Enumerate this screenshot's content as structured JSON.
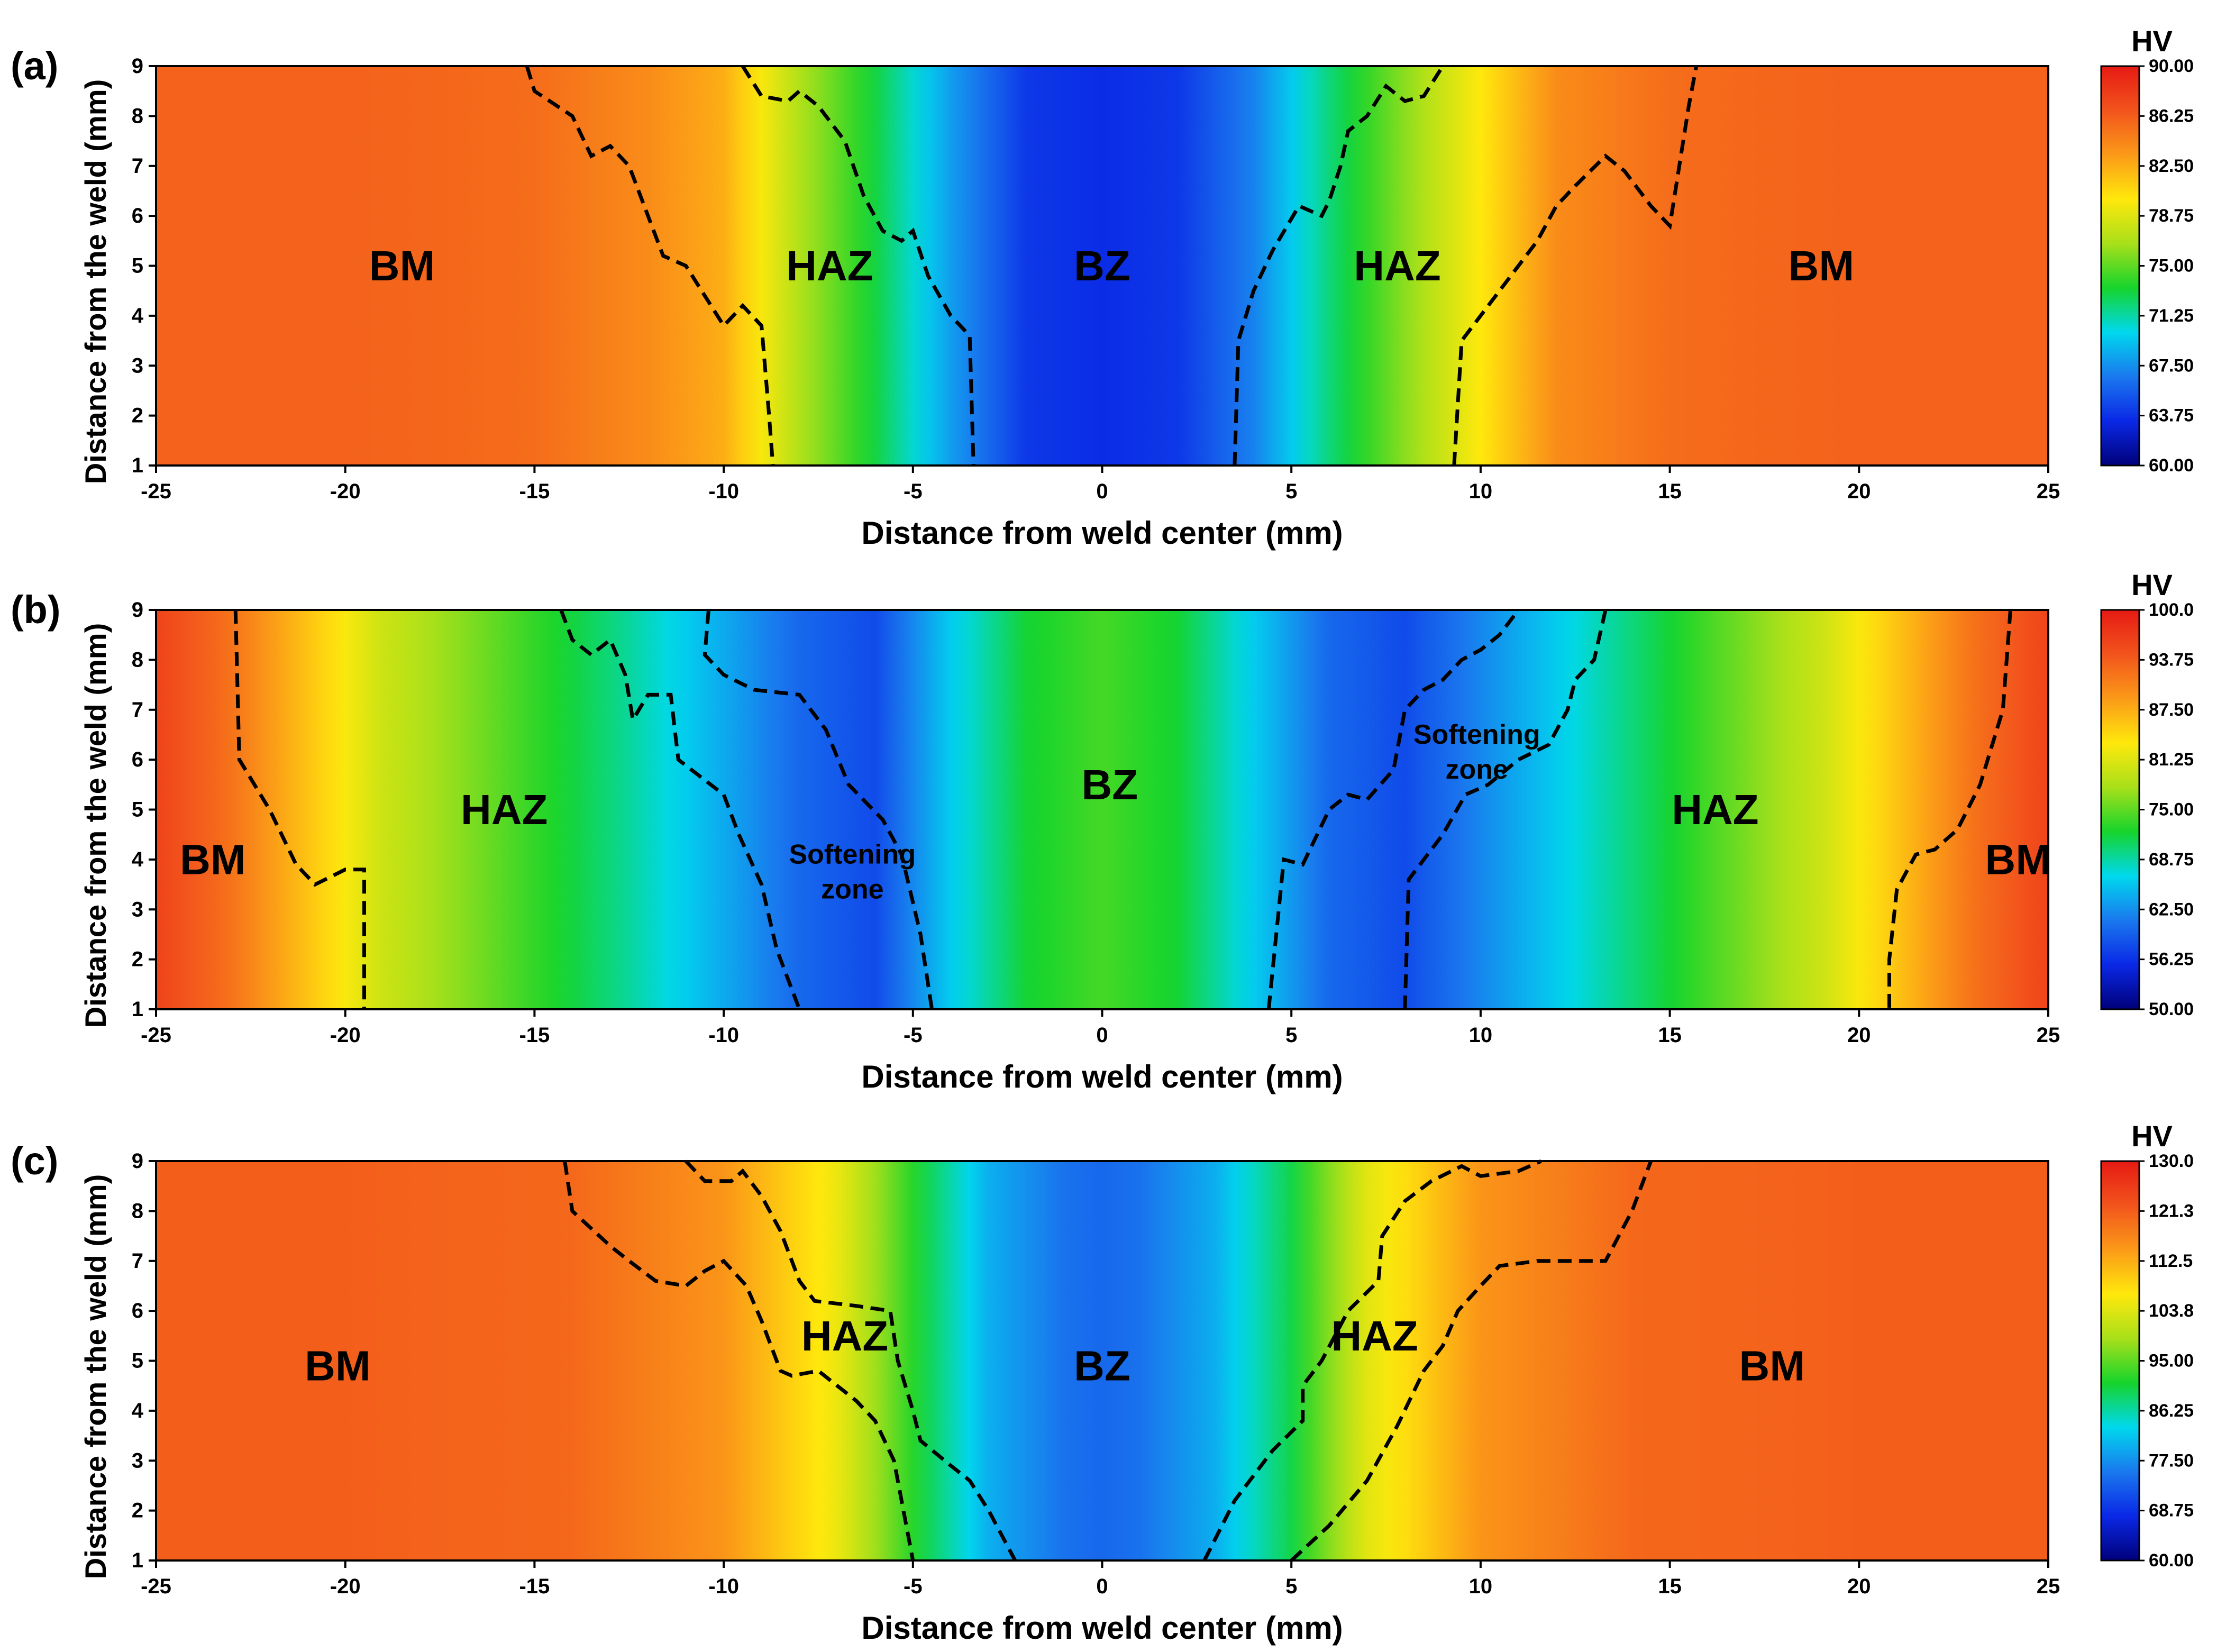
{
  "chart_data": [
    {
      "type": "heatmap",
      "panel_label": "(a)",
      "xlabel": "Distance from weld center (mm)",
      "ylabel": "Distance from the weld (mm)",
      "xlim": [
        -25,
        25
      ],
      "ylim": [
        1,
        9
      ],
      "x_ticks": [
        "-25",
        "-20",
        "-15",
        "-10",
        "-5",
        "0",
        "5",
        "10",
        "15",
        "20",
        "25"
      ],
      "y_ticks": [
        "1",
        "2",
        "3",
        "4",
        "5",
        "6",
        "7",
        "8",
        "9"
      ],
      "colorbar": {
        "title": "HV",
        "min": 60,
        "max": 90,
        "tick_labels": [
          "90.00",
          "86.25",
          "82.50",
          "78.75",
          "75.00",
          "71.25",
          "67.50",
          "63.75",
          "60.00"
        ]
      },
      "hardness_profile": {
        "x": [
          -25,
          -20,
          -15,
          -12,
          -10,
          -8,
          -6,
          -4,
          -2,
          0,
          2,
          4,
          6,
          8,
          10,
          12,
          15,
          20,
          25
        ],
        "hv": [
          86,
          86,
          85.5,
          84,
          82.5,
          77,
          73,
          68,
          64,
          63.5,
          64,
          67,
          72,
          76,
          80,
          84,
          85.5,
          86,
          86
        ]
      },
      "zone_labels": [
        {
          "text": "BM",
          "x": -18.5,
          "y": 5
        },
        {
          "text": "HAZ",
          "x": -7.2,
          "y": 5
        },
        {
          "text": "BZ",
          "x": 0,
          "y": 5
        },
        {
          "text": "HAZ",
          "x": 7.8,
          "y": 5
        },
        {
          "text": "BM",
          "x": 19,
          "y": 5
        }
      ],
      "boundaries": [
        [
          [
            -15.2,
            9
          ],
          [
            -15,
            8.5
          ],
          [
            -14,
            8
          ],
          [
            -13.5,
            7.2
          ],
          [
            -13,
            7.4
          ],
          [
            -12.5,
            7
          ],
          [
            -12,
            6
          ],
          [
            -11.6,
            5.2
          ],
          [
            -11,
            5
          ],
          [
            -10.5,
            4.4
          ],
          [
            -10,
            3.8
          ],
          [
            -9.5,
            4.2
          ],
          [
            -9,
            3.8
          ],
          [
            -8.8,
            2
          ],
          [
            -8.7,
            1
          ]
        ],
        [
          [
            -9.5,
            9
          ],
          [
            -9,
            8.4
          ],
          [
            -8.3,
            8.3
          ],
          [
            -8,
            8.5
          ],
          [
            -7.5,
            8.2
          ],
          [
            -6.8,
            7.5
          ],
          [
            -6.3,
            6.4
          ],
          [
            -5.8,
            5.7
          ],
          [
            -5.3,
            5.5
          ],
          [
            -5,
            5.7
          ],
          [
            -4.6,
            4.8
          ],
          [
            -4,
            4
          ],
          [
            -3.5,
            3.6
          ],
          [
            -3.4,
            1
          ]
        ],
        [
          [
            3.5,
            1
          ],
          [
            3.6,
            3.5
          ],
          [
            4,
            4.5
          ],
          [
            4.5,
            5.3
          ],
          [
            5.2,
            6.2
          ],
          [
            5.8,
            6
          ],
          [
            6,
            6.3
          ],
          [
            6.3,
            7
          ],
          [
            6.5,
            7.7
          ],
          [
            7,
            8
          ],
          [
            7.5,
            8.6
          ],
          [
            8,
            8.3
          ],
          [
            8.5,
            8.4
          ],
          [
            9,
            9
          ]
        ],
        [
          [
            9.3,
            1
          ],
          [
            9.5,
            3.5
          ],
          [
            10.5,
            4.5
          ],
          [
            11.5,
            5.5
          ],
          [
            12,
            6.2
          ],
          [
            12.5,
            6.6
          ],
          [
            13.3,
            7.2
          ],
          [
            13.8,
            6.9
          ],
          [
            14.5,
            6.2
          ],
          [
            15,
            5.8
          ],
          [
            15.5,
            8.2
          ],
          [
            15.7,
            9
          ]
        ]
      ]
    },
    {
      "type": "heatmap",
      "panel_label": "(b)",
      "xlabel": "Distance from weld center (mm)",
      "ylabel": "Distance from the weld (mm)",
      "xlim": [
        -25,
        25
      ],
      "ylim": [
        1,
        9
      ],
      "x_ticks": [
        "-25",
        "-20",
        "-15",
        "-10",
        "-5",
        "0",
        "5",
        "10",
        "15",
        "20",
        "25"
      ],
      "y_ticks": [
        "1",
        "2",
        "3",
        "4",
        "5",
        "6",
        "7",
        "8",
        "9"
      ],
      "colorbar": {
        "title": "HV",
        "min": 50,
        "max": 100,
        "tick_labels": [
          "100.0",
          "93.75",
          "87.50",
          "81.25",
          "75.00",
          "68.75",
          "62.50",
          "56.25",
          "50.00"
        ]
      },
      "hardness_profile": {
        "x": [
          -25,
          -23,
          -21,
          -19,
          -16,
          -13,
          -10,
          -8,
          -6,
          -4,
          -2,
          0,
          2,
          4,
          6,
          8,
          10,
          13,
          16,
          19,
          21,
          23,
          25
        ],
        "hv": [
          96,
          92,
          86,
          80,
          75,
          70,
          64,
          60,
          58,
          66,
          72,
          74,
          72,
          66,
          60,
          58,
          62,
          68,
          74,
          80,
          86,
          92,
          96
        ]
      },
      "zone_labels": [
        {
          "text": "BM",
          "x": -23.5,
          "y": 4
        },
        {
          "text": "HAZ",
          "x": -15.8,
          "y": 5
        },
        {
          "text": "Softening",
          "x": -6.6,
          "y": 4.1
        },
        {
          "text": "zone",
          "x": -6.6,
          "y": 3.4
        },
        {
          "text": "BZ",
          "x": 0.2,
          "y": 5.5
        },
        {
          "text": "Softening",
          "x": 9.9,
          "y": 6.5
        },
        {
          "text": "zone",
          "x": 9.9,
          "y": 5.8
        },
        {
          "text": "HAZ",
          "x": 16.2,
          "y": 5
        },
        {
          "text": "BM",
          "x": 24.2,
          "y": 4
        }
      ],
      "boundaries": [
        [
          [
            -22.9,
            9
          ],
          [
            -22.8,
            6
          ],
          [
            -22,
            5
          ],
          [
            -21.3,
            3.9
          ],
          [
            -20.8,
            3.5
          ],
          [
            -20,
            3.8
          ],
          [
            -19.5,
            3.8
          ],
          [
            -19.5,
            1
          ]
        ],
        [
          [
            -14.3,
            9
          ],
          [
            -14,
            8.4
          ],
          [
            -13.5,
            8.1
          ],
          [
            -13,
            8.4
          ],
          [
            -12.6,
            7.7
          ],
          [
            -12.4,
            6.8
          ],
          [
            -12,
            7.3
          ],
          [
            -11.4,
            7.3
          ],
          [
            -11.2,
            6
          ],
          [
            -10,
            5.3
          ],
          [
            -9.6,
            4.5
          ],
          [
            -9,
            3.5
          ],
          [
            -8.6,
            2.2
          ],
          [
            -8,
            1
          ]
        ],
        [
          [
            -10.4,
            9
          ],
          [
            -10.5,
            8.1
          ],
          [
            -10,
            7.7
          ],
          [
            -9.2,
            7.4
          ],
          [
            -8,
            7.3
          ],
          [
            -7.3,
            6.6
          ],
          [
            -6.7,
            5.5
          ],
          [
            -5.8,
            4.8
          ],
          [
            -5.3,
            4.1
          ],
          [
            -4.8,
            2.5
          ],
          [
            -4.5,
            1
          ]
        ],
        [
          [
            4.4,
            1
          ],
          [
            4.8,
            4
          ],
          [
            5.3,
            3.9
          ],
          [
            6,
            5
          ],
          [
            6.5,
            5.3
          ],
          [
            7,
            5.2
          ],
          [
            7.7,
            5.8
          ],
          [
            8,
            7
          ],
          [
            8.5,
            7.4
          ],
          [
            9,
            7.6
          ],
          [
            9.5,
            8
          ],
          [
            10,
            8.2
          ],
          [
            10.5,
            8.5
          ],
          [
            11,
            9
          ]
        ],
        [
          [
            8,
            1
          ],
          [
            8.1,
            3.6
          ],
          [
            8.5,
            4
          ],
          [
            9,
            4.5
          ],
          [
            9.6,
            5.3
          ],
          [
            10.2,
            5.5
          ],
          [
            11,
            6
          ],
          [
            11.8,
            6.3
          ],
          [
            12.3,
            7
          ],
          [
            12.5,
            7.6
          ],
          [
            13,
            8
          ],
          [
            13.3,
            9
          ]
        ],
        [
          [
            24,
            9
          ],
          [
            23.8,
            7
          ],
          [
            23.2,
            5.5
          ],
          [
            22.6,
            4.6
          ],
          [
            22,
            4.2
          ],
          [
            21.5,
            4.1
          ],
          [
            21,
            3.4
          ],
          [
            20.8,
            2
          ],
          [
            20.8,
            1
          ]
        ]
      ]
    },
    {
      "type": "heatmap",
      "panel_label": "(c)",
      "xlabel": "Distance from weld center (mm)",
      "ylabel": "Distance from the weld (mm)",
      "xlim": [
        -25,
        25
      ],
      "ylim": [
        1,
        9
      ],
      "x_ticks": [
        "-25",
        "-20",
        "-15",
        "-10",
        "-5",
        "0",
        "5",
        "10",
        "15",
        "20",
        "25"
      ],
      "y_ticks": [
        "1",
        "2",
        "3",
        "4",
        "5",
        "6",
        "7",
        "8",
        "9"
      ],
      "colorbar": {
        "title": "HV",
        "min": 60,
        "max": 130,
        "tick_labels": [
          "130.0",
          "121.3",
          "112.5",
          "103.8",
          "95.00",
          "86.25",
          "77.50",
          "68.75",
          "60.00"
        ]
      },
      "hardness_profile": {
        "x": [
          -25,
          -20,
          -14,
          -10,
          -7,
          -5,
          -3,
          -1,
          0,
          1,
          3,
          5,
          7,
          10,
          14,
          20,
          25
        ],
        "hv": [
          121,
          121,
          120,
          115,
          105,
          92,
          80,
          75,
          74,
          75,
          80,
          90,
          104,
          115,
          120,
          121,
          121
        ]
      },
      "zone_labels": [
        {
          "text": "BM",
          "x": -20.2,
          "y": 4.9
        },
        {
          "text": "HAZ",
          "x": -6.8,
          "y": 5.5
        },
        {
          "text": "BZ",
          "x": 0,
          "y": 4.9
        },
        {
          "text": "HAZ",
          "x": 7.2,
          "y": 5.5
        },
        {
          "text": "BM",
          "x": 17.7,
          "y": 4.9
        }
      ],
      "boundaries": [
        [
          [
            -14.2,
            9
          ],
          [
            -14,
            8
          ],
          [
            -13,
            7.3
          ],
          [
            -12.5,
            7
          ],
          [
            -11.8,
            6.6
          ],
          [
            -11,
            6.5
          ],
          [
            -10.5,
            6.8
          ],
          [
            -10,
            7
          ],
          [
            -9.4,
            6.5
          ],
          [
            -9,
            5.8
          ],
          [
            -8.5,
            4.8
          ],
          [
            -8.2,
            4.7
          ],
          [
            -7.5,
            4.8
          ],
          [
            -6.5,
            4.2
          ],
          [
            -6,
            3.8
          ],
          [
            -5.5,
            3
          ],
          [
            -5,
            1
          ]
        ],
        [
          [
            -11,
            9
          ],
          [
            -10.5,
            8.6
          ],
          [
            -9.8,
            8.6
          ],
          [
            -9.5,
            8.8
          ],
          [
            -9,
            8.3
          ],
          [
            -8.5,
            7.6
          ],
          [
            -8,
            6.6
          ],
          [
            -7.6,
            6.2
          ],
          [
            -6.5,
            6.1
          ],
          [
            -5.6,
            6
          ],
          [
            -5.4,
            5
          ],
          [
            -5,
            4
          ],
          [
            -4.8,
            3.4
          ],
          [
            -4,
            2.9
          ],
          [
            -3.5,
            2.6
          ],
          [
            -3,
            2
          ],
          [
            -2.3,
            1
          ]
        ],
        [
          [
            2.7,
            1
          ],
          [
            3.5,
            2.2
          ],
          [
            4.5,
            3.2
          ],
          [
            5.3,
            3.8
          ],
          [
            5.3,
            4.5
          ],
          [
            5.8,
            5
          ],
          [
            6.5,
            6
          ],
          [
            7.3,
            6.6
          ],
          [
            7.4,
            7.5
          ],
          [
            8,
            8.2
          ],
          [
            8.7,
            8.6
          ],
          [
            9.5,
            8.9
          ],
          [
            10,
            8.7
          ],
          [
            11,
            8.8
          ],
          [
            11.6,
            9
          ]
        ],
        [
          [
            5,
            1
          ],
          [
            6,
            1.7
          ],
          [
            7,
            2.6
          ],
          [
            7.8,
            3.7
          ],
          [
            8.5,
            4.8
          ],
          [
            9,
            5.3
          ],
          [
            9.4,
            6
          ],
          [
            10,
            6.5
          ],
          [
            10.5,
            6.9
          ],
          [
            11.5,
            7
          ],
          [
            12.5,
            7
          ],
          [
            13.3,
            7
          ],
          [
            14,
            8
          ],
          [
            14.5,
            9
          ]
        ]
      ]
    }
  ],
  "colors": {
    "background": "#ffffff",
    "text": "#000000",
    "boundary_line": "#000000",
    "colormap": [
      "#00007a",
      "#0a28e6",
      "#1a78ee",
      "#00d8ee",
      "#16d42c",
      "#a8e01a",
      "#ffe80c",
      "#fb9a18",
      "#f2541c",
      "#e61a14"
    ]
  }
}
